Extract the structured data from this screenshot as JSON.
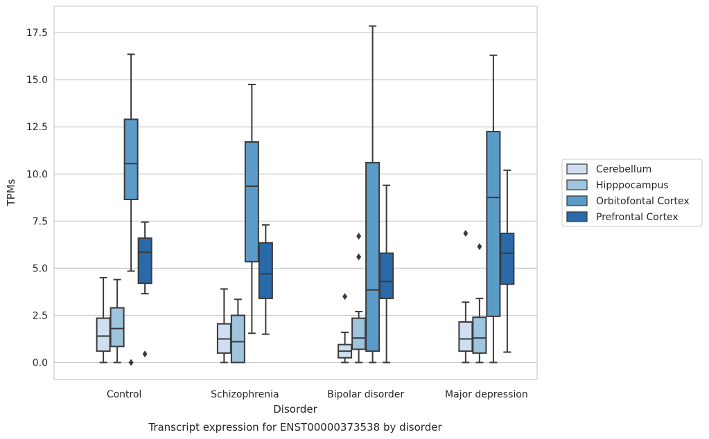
{
  "chart_data": {
    "type": "box",
    "title": "",
    "caption": "Transcript expression for ENST00000373538 by disorder",
    "xlabel": "Disorder",
    "ylabel": "TPMs",
    "ylim": [
      -0.9,
      18.9
    ],
    "yticks": [
      "0.0",
      "2.5",
      "5.0",
      "7.5",
      "10.0",
      "12.5",
      "15.0",
      "17.5"
    ],
    "ytick_values": [
      0,
      2.5,
      5,
      7.5,
      10,
      12.5,
      15,
      17.5
    ],
    "grid": "horizontal",
    "legend_position": "right",
    "categories": [
      "Control",
      "Schizophrenia",
      "Bipolar disorder",
      "Major depression"
    ],
    "series": [
      {
        "name": "Cerebellum",
        "color": "#cfdff0",
        "boxes": [
          {
            "whisker_low": 0.0,
            "q1": 0.6,
            "median": 1.4,
            "q3": 2.35,
            "whisker_high": 4.5,
            "outliers": []
          },
          {
            "whisker_low": 0.0,
            "q1": 0.5,
            "median": 1.25,
            "q3": 2.05,
            "whisker_high": 3.9,
            "outliers": []
          },
          {
            "whisker_low": 0.0,
            "q1": 0.25,
            "median": 0.6,
            "q3": 0.95,
            "whisker_high": 1.6,
            "outliers": [
              3.5
            ]
          },
          {
            "whisker_low": 0.0,
            "q1": 0.6,
            "median": 1.25,
            "q3": 2.15,
            "whisker_high": 3.2,
            "outliers": [
              6.85
            ]
          }
        ]
      },
      {
        "name": "Hipppocampus",
        "color": "#9ec4de",
        "boxes": [
          {
            "whisker_low": 0.0,
            "q1": 0.85,
            "median": 1.8,
            "q3": 2.9,
            "whisker_high": 4.4,
            "outliers": []
          },
          {
            "whisker_low": 0.0,
            "q1": 0.0,
            "median": 1.1,
            "q3": 2.5,
            "whisker_high": 3.35,
            "outliers": []
          },
          {
            "whisker_low": 0.0,
            "q1": 0.7,
            "median": 1.3,
            "q3": 2.35,
            "whisker_high": 2.7,
            "outliers": [
              5.6,
              6.7
            ]
          },
          {
            "whisker_low": 0.0,
            "q1": 0.5,
            "median": 1.3,
            "q3": 2.4,
            "whisker_high": 3.4,
            "outliers": [
              6.15
            ]
          }
        ]
      },
      {
        "name": "Orbitofontal Cortex",
        "color": "#5b9bc8",
        "boxes": [
          {
            "whisker_low": 4.85,
            "q1": 8.65,
            "median": 10.55,
            "q3": 12.9,
            "whisker_high": 16.35,
            "outliers": [
              0.0
            ]
          },
          {
            "whisker_low": 1.55,
            "q1": 5.35,
            "median": 9.35,
            "q3": 11.7,
            "whisker_high": 14.75,
            "outliers": []
          },
          {
            "whisker_low": 0.0,
            "q1": 0.6,
            "median": 3.85,
            "q3": 10.6,
            "whisker_high": 17.85,
            "outliers": []
          },
          {
            "whisker_low": 0.0,
            "q1": 2.45,
            "median": 8.75,
            "q3": 12.25,
            "whisker_high": 16.3,
            "outliers": []
          }
        ]
      },
      {
        "name": "Prefrontal Cortex",
        "color": "#2a6aa8",
        "boxes": [
          {
            "whisker_low": 3.65,
            "q1": 4.2,
            "median": 5.85,
            "q3": 6.6,
            "whisker_high": 7.45,
            "outliers": [
              0.45
            ]
          },
          {
            "whisker_low": 1.5,
            "q1": 3.4,
            "median": 4.7,
            "q3": 6.35,
            "whisker_high": 7.3,
            "outliers": []
          },
          {
            "whisker_low": 0.0,
            "q1": 3.4,
            "median": 4.3,
            "q3": 5.8,
            "whisker_high": 9.4,
            "outliers": []
          },
          {
            "whisker_low": 0.55,
            "q1": 4.15,
            "median": 5.8,
            "q3": 6.85,
            "whisker_high": 10.2,
            "outliers": []
          }
        ]
      }
    ]
  }
}
